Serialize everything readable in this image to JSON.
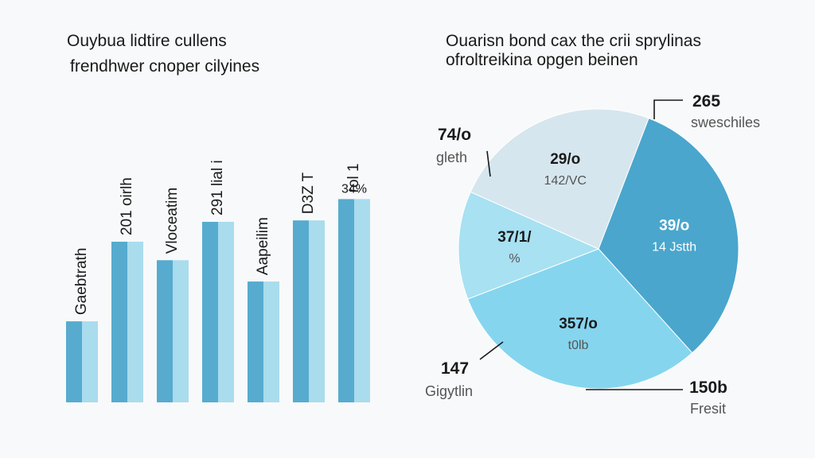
{
  "colors": {
    "background": "#f8f9fa",
    "bar_dark": "#56abcf",
    "bar_light": "#a9dced",
    "pie_dark": "#4aa6cd",
    "pie_mid": "#86d5ee",
    "pie_light": "#a7e1f2",
    "pie_pale": "#d6e6ee",
    "text": "#1a1a1a",
    "muted": "#555555"
  },
  "chart_data": [
    {
      "type": "bar",
      "title_lines": [
        "Ouybua lidtire cullens",
        "frendhwer cnoper cilyines"
      ],
      "categories": [
        "Gaebtrath",
        "201 oirlh",
        "Vloceatim",
        "291 lial i",
        "Aapeilim",
        "D3Z T",
        "rol 1"
      ],
      "series": [
        {
          "values": [
            57,
            113,
            100,
            127,
            85,
            128,
            143
          ]
        },
        {
          "values": [
            57,
            113,
            100,
            127,
            85,
            128,
            143
          ]
        }
      ],
      "data_labels": [
        "",
        "",
        "",
        "",
        "",
        "",
        "34%"
      ],
      "ylim": [
        0,
        160
      ],
      "grid": false,
      "legend": "none"
    },
    {
      "type": "pie",
      "title_lines": [
        "Ouarisn bond cax the crii sprylinas",
        "ofroltreikina opgen beinen"
      ],
      "slices": [
        {
          "value": 39,
          "color_key": "pie_dark",
          "inner_value": "39/o",
          "inner_sub": "14 Jstth"
        },
        {
          "value": 37,
          "color_key": "pie_mid",
          "inner_value": "357/o",
          "inner_sub": "t0lb"
        },
        {
          "value": 15,
          "color_key": "pie_light",
          "inner_value": "37/1/",
          "inner_sub": "%"
        },
        {
          "value": 29,
          "color_key": "pie_pale",
          "inner_value": "29/o",
          "inner_sub": "142/VC"
        }
      ],
      "callouts": [
        {
          "value": "265",
          "label": "sweschiles"
        },
        {
          "value": "74/o",
          "label": "gleth"
        },
        {
          "value": "147",
          "label": "Gigytlin"
        },
        {
          "value": "150b",
          "label": "Fresit"
        }
      ],
      "legend": "none"
    }
  ]
}
